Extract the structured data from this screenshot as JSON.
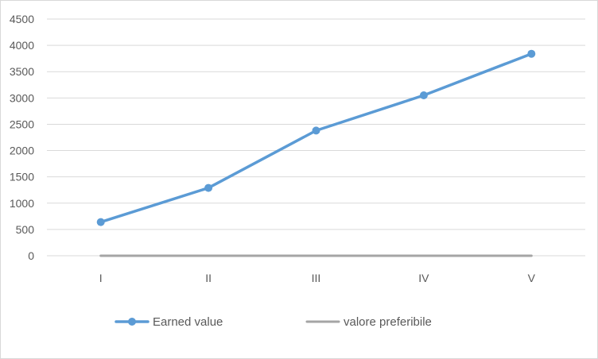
{
  "chart_data": {
    "type": "line",
    "categories": [
      "I",
      "II",
      "III",
      "IV",
      "V"
    ],
    "y_ticks": [
      "0",
      "500",
      "1000",
      "1500",
      "2000",
      "2500",
      "3000",
      "3500",
      "4000",
      "4500"
    ],
    "ylim": [
      0,
      4500
    ],
    "grid": true,
    "legend_position": "bottom",
    "series": [
      {
        "name": "Earned value",
        "values": [
          640,
          1290,
          2380,
          3050,
          3840
        ],
        "color": "#5B9BD5",
        "markers": true
      },
      {
        "name": "valore preferibile",
        "values": [
          0,
          0,
          0,
          0,
          0
        ],
        "color": "#A5A5A5",
        "markers": false
      }
    ]
  }
}
